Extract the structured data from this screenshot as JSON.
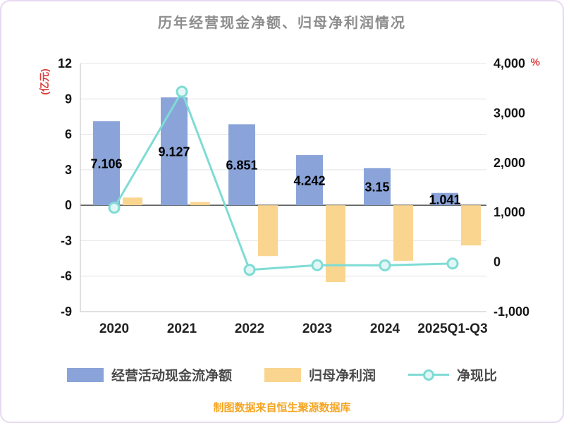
{
  "footer": {
    "text": "制图数据来自恒生聚源数据库"
  },
  "colors": {
    "cash_bar": "#8aa4d9",
    "profit_bar": "#f9d58f",
    "ratio_line": "#7edcd5",
    "ratio_marker_fill": "#e2f7f5",
    "title_text": "#8d8d8d",
    "axis_unit_text": "#e03c3c",
    "tick_text": "#141414",
    "category_text": "#222222",
    "data_label_text": "#000000",
    "grid": "#e4e4e4",
    "axis_line": "#c2c2c2",
    "zero_line": "#4d4d4d",
    "legend_text": "#4a4a4a",
    "footer_text": "#f5a623",
    "frame_border": "#e8d8f0"
  },
  "chart_data": {
    "type": "bar",
    "title": "历年经营现金净额、归母净利润情况",
    "categories": [
      "2020",
      "2021",
      "2022",
      "2023",
      "2024",
      "2025Q1-Q3"
    ],
    "left_axis": {
      "unit": "(亿元)",
      "min": -9,
      "max": 12,
      "ticks": [
        12,
        9,
        6,
        3,
        0,
        -3,
        -6,
        -9
      ],
      "tick_labels": [
        "12",
        "9",
        "6",
        "3",
        "0",
        "-3",
        "-6",
        "-9"
      ]
    },
    "right_axis": {
      "unit": "%",
      "min": -1000,
      "max": 4000,
      "ticks": [
        4000,
        3000,
        2000,
        1000,
        0,
        -1000
      ],
      "tick_labels": [
        "4,000",
        "3,000",
        "2,000",
        "1,000",
        "0",
        "-1,000"
      ]
    },
    "series": [
      {
        "name": "经营活动现金流净额",
        "type": "bar",
        "axis": "left",
        "values": [
          7.106,
          9.127,
          6.851,
          4.242,
          3.15,
          1.041
        ],
        "data_labels": [
          "7.106",
          "9.127",
          "6.851",
          "4.242",
          "3.15",
          "1.041"
        ]
      },
      {
        "name": "归母净利润",
        "type": "bar",
        "axis": "left",
        "values": [
          0.65,
          0.27,
          -4.3,
          -6.5,
          -4.7,
          -3.4
        ]
      },
      {
        "name": "净现比",
        "type": "line",
        "axis": "right",
        "values": [
          1093,
          3431,
          -159,
          -65,
          -67,
          -31
        ]
      }
    ],
    "legend_position": "bottom",
    "grid": true
  }
}
